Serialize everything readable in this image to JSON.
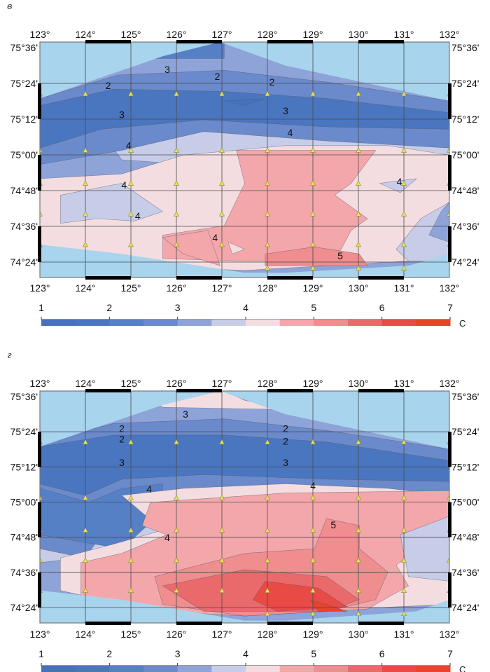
{
  "chart_data": [
    {
      "type": "heatmap",
      "panel_label": "в",
      "title": "",
      "x_ticks": [
        "123°",
        "124°",
        "125°",
        "126°",
        "127°",
        "128°",
        "129°",
        "130°",
        "131°",
        "132°"
      ],
      "y_ticks": [
        "75°36'",
        "75°24'",
        "75°12'",
        "75°00'",
        "74°48'",
        "74°36'",
        "74°24'"
      ],
      "xlim": [
        123,
        132
      ],
      "ylim": [
        74.3,
        75.6
      ],
      "contour_labels": [
        {
          "text": "3",
          "lon": 125.8,
          "lat": 75.45
        },
        {
          "text": "2",
          "lon": 126.9,
          "lat": 75.41
        },
        {
          "text": "2",
          "lon": 128.1,
          "lat": 75.38
        },
        {
          "text": "2",
          "lon": 124.5,
          "lat": 75.36
        },
        {
          "text": "3",
          "lon": 128.4,
          "lat": 75.22
        },
        {
          "text": "3",
          "lon": 124.8,
          "lat": 75.2
        },
        {
          "text": "4",
          "lon": 128.5,
          "lat": 75.1
        },
        {
          "text": "4",
          "lon": 124.95,
          "lat": 75.03
        },
        {
          "text": "4",
          "lon": 124.85,
          "lat": 74.81
        },
        {
          "text": "4",
          "lon": 130.9,
          "lat": 74.83
        },
        {
          "text": "4",
          "lon": 125.15,
          "lat": 74.64
        },
        {
          "text": "4",
          "lon": 126.85,
          "lat": 74.52
        },
        {
          "text": "5",
          "lon": 129.6,
          "lat": 74.42
        }
      ],
      "stations_note": "yellow triangles mark sampling stations"
    },
    {
      "type": "heatmap",
      "panel_label": "г",
      "title": "",
      "x_ticks": [
        "123°",
        "124°",
        "125°",
        "126°",
        "127°",
        "128°",
        "129°",
        "130°",
        "131°",
        "132°"
      ],
      "y_ticks": [
        "75°36'",
        "75°24'",
        "75°12'",
        "75°00'",
        "74°48'",
        "74°36'",
        "74°24'"
      ],
      "xlim": [
        123,
        132
      ],
      "ylim": [
        74.3,
        75.6
      ],
      "contour_labels": [
        {
          "text": "3",
          "lon": 126.2,
          "lat": 75.47
        },
        {
          "text": "2",
          "lon": 124.8,
          "lat": 75.39
        },
        {
          "text": "2",
          "lon": 128.4,
          "lat": 75.39
        },
        {
          "text": "2",
          "lon": 124.8,
          "lat": 75.33
        },
        {
          "text": "2",
          "lon": 128.4,
          "lat": 75.32
        },
        {
          "text": "3",
          "lon": 124.8,
          "lat": 75.2
        },
        {
          "text": "3",
          "lon": 128.4,
          "lat": 75.2
        },
        {
          "text": "4",
          "lon": 129.0,
          "lat": 75.07
        },
        {
          "text": "4",
          "lon": 125.4,
          "lat": 75.05
        },
        {
          "text": "5",
          "lon": 129.45,
          "lat": 74.85
        },
        {
          "text": "4",
          "lon": 125.8,
          "lat": 74.78
        }
      ],
      "stations_note": "yellow triangles mark sampling stations"
    }
  ],
  "colorbar": {
    "ticks": [
      "1",
      "2",
      "3",
      "4",
      "5",
      "6",
      "7"
    ],
    "unit": "C",
    "min": 1,
    "max": 7,
    "step": 0.5,
    "colors": [
      "#4571bd",
      "#4a76c0",
      "#5680c6",
      "#6a8acb",
      "#8ea4d8",
      "#c7cde8",
      "#f4dde0",
      "#f4a7ab",
      "#ef8d8f",
      "#ea6a6c",
      "#e84a45",
      "#e8432b"
    ]
  },
  "colors": {
    "sea": "#a8d4ee",
    "grid": "#4a4a4a",
    "station": "#e8e05a"
  }
}
